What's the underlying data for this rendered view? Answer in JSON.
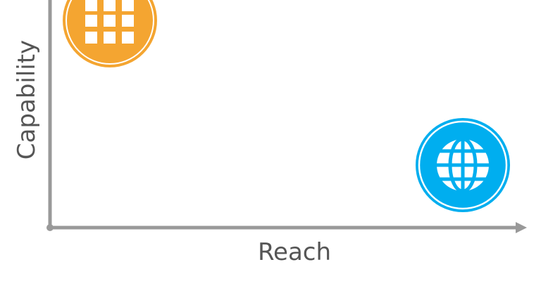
{
  "axes": {
    "x_label": "Reach",
    "y_label": "Capability"
  },
  "items": [
    {
      "icon": "app-grid-icon",
      "color": "#F4A531"
    },
    {
      "icon": "globe-icon",
      "color": "#00AEEF"
    }
  ],
  "colors": {
    "axis": "#999999",
    "text": "#555555",
    "background": "#FFFFFF"
  }
}
